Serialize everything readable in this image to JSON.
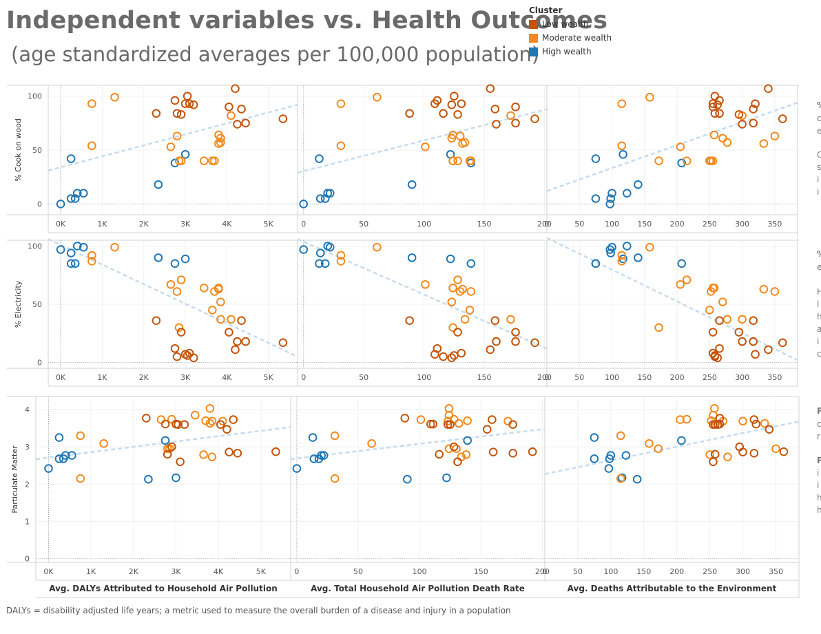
{
  "title": "Independent variables vs. Health Outcomes",
  "subtitle": "(age standardized averages per 100,000 population)",
  "legend": {
    "title": "Cluster",
    "items": [
      {
        "label": "Low wealth",
        "color": "#c2540a"
      },
      {
        "label": "Moderate wealth",
        "color": "#f28a1d"
      },
      {
        "label": "High wealth",
        "color": "#1f77b4"
      }
    ]
  },
  "footnote": "DALYs = disability adjusted life years; a metric used to measure the overall burden of a disease and injury in a population",
  "side_notes": [
    "%",
    "c",
    "e",
    "C",
    "s",
    "i",
    "i",
    "%",
    "e",
    "H",
    "l",
    "h",
    "a",
    "i",
    "c",
    "P",
    "c",
    "r",
    "P",
    "i",
    "i",
    "h",
    "h"
  ],
  "chart_data": {
    "type": "scatter",
    "x_axes": [
      {
        "label": "Avg. DALYs Attributed to Household Air Pollution",
        "range": [
          -300,
          5700
        ],
        "ticks": [
          0,
          1000,
          2000,
          3000,
          4000,
          5000
        ],
        "tick_labels": [
          "0K",
          "1K",
          "2K",
          "3K",
          "4K",
          "5K"
        ]
      },
      {
        "label": "Avg. Total Household Air Pollution Death Rate",
        "range": [
          -5,
          202
        ],
        "ticks": [
          0,
          50,
          100,
          150,
          200
        ],
        "tick_labels": [
          "0",
          "50",
          "100",
          "150",
          "200"
        ]
      },
      {
        "label": "Avg. Deaths Attributable to the Environment",
        "range": [
          0,
          385
        ],
        "ticks": [
          0,
          50,
          100,
          150,
          200,
          250,
          300,
          350
        ],
        "tick_labels": [
          "0",
          "50",
          "100",
          "150",
          "200",
          "250",
          "300",
          "350"
        ]
      }
    ],
    "y_axes": [
      {
        "label": "% Cook on wood",
        "range": [
          -10,
          110
        ],
        "ticks": [
          0,
          50,
          100
        ],
        "tick_labels": [
          "0",
          "50",
          "100"
        ]
      },
      {
        "label": "% Electricity",
        "range": [
          -5,
          105
        ],
        "ticks": [
          0,
          50,
          100
        ],
        "tick_labels": [
          "0",
          "50",
          "100"
        ]
      },
      {
        "label": "Particulate Matter",
        "range": [
          -0.1,
          4.35
        ],
        "ticks": [
          0,
          1,
          2,
          3,
          4
        ],
        "tick_labels": [
          "0",
          "1",
          "2",
          "3",
          "4"
        ]
      }
    ],
    "trend_lines": [
      [
        {
          "x": [
            -300,
            5700
          ],
          "y": [
            31,
            92
          ]
        },
        {
          "x": [
            -5,
            202
          ],
          "y": [
            29,
            88
          ]
        },
        {
          "x": [
            0,
            385
          ],
          "y": [
            12,
            94
          ]
        }
      ],
      [
        {
          "x": [
            -300,
            5700
          ],
          "y": [
            106,
            5
          ]
        },
        {
          "x": [
            -5,
            202
          ],
          "y": [
            106,
            12
          ]
        },
        {
          "x": [
            0,
            385
          ],
          "y": [
            107,
            2
          ]
        }
      ],
      [
        {
          "x": [
            -300,
            5700
          ],
          "y": [
            2.67,
            3.53
          ]
        },
        {
          "x": [
            -5,
            202
          ],
          "y": [
            2.67,
            3.48
          ]
        },
        {
          "x": [
            0,
            385
          ],
          "y": [
            2.27,
            3.68
          ]
        }
      ]
    ],
    "series": [
      {
        "name": "High wealth",
        "color": "#1f77b4",
        "points": [
          {
            "daly": 0,
            "death_rate": 0,
            "env": 97,
            "cook": 0,
            "elec": 97,
            "pm": 2.42
          },
          {
            "daly": 350,
            "death_rate": 18,
            "env": 75,
            "cook": 5,
            "elec": 85,
            "pm": 2.68
          },
          {
            "daly": 550,
            "death_rate": 22,
            "env": 100,
            "cook": 10,
            "elec": 99,
            "pm": 2.77
          },
          {
            "daly": 250,
            "death_rate": 13,
            "env": 75,
            "cook": 42,
            "elec": 85,
            "pm": 3.25
          },
          {
            "daly": 2350,
            "death_rate": 90,
            "env": 140,
            "cook": 18,
            "elec": 90,
            "pm": 2.13
          },
          {
            "daly": 2750,
            "death_rate": 139,
            "env": 207,
            "cook": 38,
            "elec": 85,
            "pm": 3.17
          },
          {
            "daly": 3000,
            "death_rate": 122,
            "env": 117,
            "cook": 46,
            "elec": 89,
            "pm": 2.17
          },
          {
            "daly": 250,
            "death_rate": 14,
            "env": 98,
            "cook": 5,
            "elec": 94,
            "pm": 2.68
          },
          {
            "daly": 400,
            "death_rate": 20,
            "env": 123,
            "cook": 10,
            "elec": 100,
            "pm": 2.77
          }
        ]
      },
      {
        "name": "Moderate wealth",
        "color": "#f28a1d",
        "points": [
          {
            "daly": 750,
            "death_rate": 31,
            "env": 115,
            "cook": 93,
            "elec": 92,
            "pm": 3.3
          },
          {
            "daly": 750,
            "death_rate": 31,
            "env": 115,
            "cook": 54,
            "elec": 87,
            "pm": 2.15
          },
          {
            "daly": 1300,
            "death_rate": 61,
            "env": 158,
            "cook": 99,
            "elec": 99,
            "pm": 3.09
          },
          {
            "daly": 2650,
            "death_rate": 101,
            "env": 205,
            "cook": 53,
            "elec": 67,
            "pm": 3.73
          },
          {
            "daly": 2900,
            "death_rate": 128,
            "env": 215,
            "cook": 40,
            "elec": 71,
            "pm": 3.74
          },
          {
            "daly": 3450,
            "death_rate": 124,
            "env": 255,
            "cook": 40,
            "elec": 64,
            "pm": 3.85
          },
          {
            "daly": 3650,
            "death_rate": 138,
            "env": 250,
            "cook": 40,
            "elec": 45,
            "pm": 2.79
          },
          {
            "daly": 3700,
            "death_rate": 139,
            "env": 252,
            "cook": 40,
            "elec": 61,
            "pm": 3.7
          },
          {
            "daly": 3800,
            "death_rate": 124,
            "env": 257,
            "cook": 64,
            "elec": 64,
            "pm": 4.03
          },
          {
            "daly": 3850,
            "death_rate": 123,
            "env": 270,
            "cook": 61,
            "elec": 52,
            "pm": 3.69
          },
          {
            "daly": 3850,
            "death_rate": 134,
            "env": 277,
            "cook": 57,
            "elec": 37,
            "pm": 2.73
          },
          {
            "daly": 4100,
            "death_rate": 172,
            "env": 300,
            "cook": 82,
            "elec": 37,
            "pm": 3.69
          },
          {
            "daly": 2850,
            "death_rate": 124,
            "env": 172,
            "cook": 40,
            "elec": 30,
            "pm": 2.95
          },
          {
            "daly": 3800,
            "death_rate": 132,
            "env": 333,
            "cook": 56,
            "elec": 63,
            "pm": 3.63
          },
          {
            "daly": 2800,
            "death_rate": 130,
            "env": 350,
            "cook": 63,
            "elec": 61,
            "pm": 2.95
          }
        ]
      },
      {
        "name": "Low wealth",
        "color": "#c2540a",
        "points": [
          {
            "daly": 2300,
            "death_rate": 88,
            "env": 265,
            "cook": 84,
            "elec": 36,
            "pm": 3.77
          },
          {
            "daly": 2750,
            "death_rate": 111,
            "env": 265,
            "cook": 96,
            "elec": 12,
            "pm": 3.61
          },
          {
            "daly": 2900,
            "death_rate": 128,
            "env": 295,
            "cook": 83,
            "elec": 26,
            "pm": 3.0
          },
          {
            "daly": 3050,
            "death_rate": 125,
            "env": 258,
            "cook": 100,
            "elec": 6,
            "pm": 3.6
          },
          {
            "daly": 3100,
            "death_rate": 131,
            "env": 255,
            "cook": 93,
            "elec": 8,
            "pm": 2.6
          },
          {
            "daly": 3200,
            "death_rate": 123,
            "env": 262,
            "cook": 92,
            "elec": 4,
            "pm": 3.6
          },
          {
            "daly": 2800,
            "death_rate": 116,
            "env": 258,
            "cook": 84,
            "elec": 5,
            "pm": 2.8
          },
          {
            "daly": 4200,
            "death_rate": 155,
            "env": 340,
            "cook": 107,
            "elec": 11,
            "pm": 3.47
          },
          {
            "daly": 4350,
            "death_rate": 159,
            "env": 317,
            "cook": 88,
            "elec": 36,
            "pm": 3.73
          },
          {
            "daly": 4450,
            "death_rate": 176,
            "env": 317,
            "cook": 75,
            "elec": 18,
            "pm": 2.83
          },
          {
            "daly": 5350,
            "death_rate": 192,
            "env": 362,
            "cook": 79,
            "elec": 17,
            "pm": 2.87
          },
          {
            "daly": 3000,
            "death_rate": 109,
            "env": 320,
            "cook": 93,
            "elec": 7,
            "pm": 3.61
          },
          {
            "daly": 4250,
            "death_rate": 160,
            "env": 300,
            "cook": 74,
            "elec": 18,
            "pm": 2.86
          },
          {
            "daly": 4050,
            "death_rate": 176,
            "env": 255,
            "cook": 90,
            "elec": 26,
            "pm": 3.6
          }
        ]
      }
    ]
  }
}
